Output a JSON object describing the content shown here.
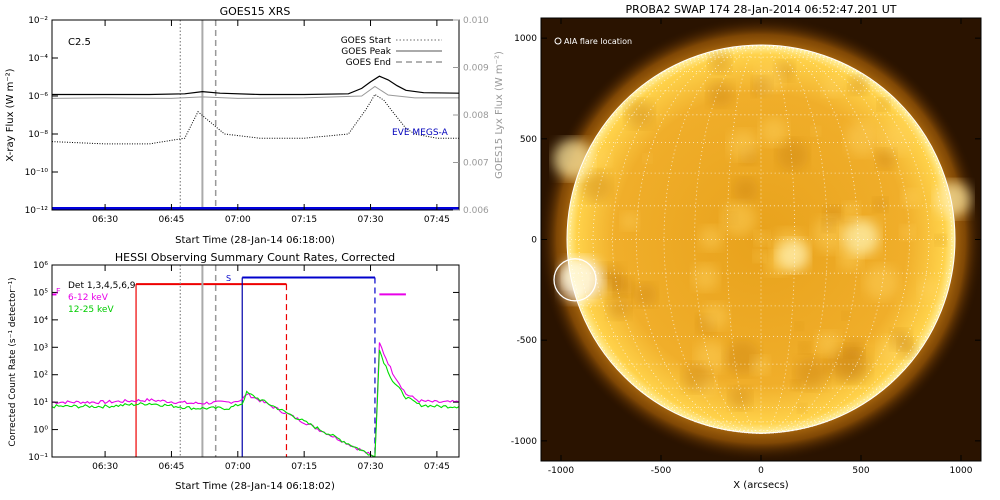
{
  "chart_data": [
    {
      "type": "line",
      "title": "GOES15 XRS",
      "xlabel": "Start Time (28-Jan-14 06:18:00)",
      "ylabel": "X-ray Flux (W m⁻²)",
      "ylabel_right": "GOES15 Lyx Flux (W m⁻²)",
      "x_ticks": [
        "06:30",
        "06:45",
        "07:00",
        "07:15",
        "07:30",
        "07:45"
      ],
      "y_ticks": [
        "10⁻¹²",
        "10⁻¹⁰",
        "10⁻⁸",
        "10⁻⁶",
        "10⁻⁴",
        "10⁻²"
      ],
      "y_right_ticks": [
        "0.006",
        "0.007",
        "0.008",
        "0.009",
        "0.010"
      ],
      "ylim": [
        1e-12,
        0.01
      ],
      "ylim_right": [
        0.006,
        0.01
      ],
      "log_y": true,
      "flare_class": "C2.5",
      "annotation": "EVE MEGS-A",
      "legend": [
        "GOES Start",
        "GOES Peak",
        "GOES End"
      ],
      "legend_position": "top-right",
      "markers": {
        "GOES Start": "06:47",
        "GOES Peak": "06:52",
        "GOES End": "06:55"
      },
      "series": [
        {
          "name": "long",
          "times": [
            "06:18",
            "06:30",
            "06:40",
            "06:48",
            "06:52",
            "06:56",
            "07:05",
            "07:15",
            "07:25",
            "07:28",
            "07:30",
            "07:32",
            "07:34",
            "07:36",
            "07:38",
            "07:42",
            "07:50"
          ],
          "values": [
            1.2e-06,
            1.2e-06,
            1.2e-06,
            1.3e-06,
            1.7e-06,
            1.4e-06,
            1.2e-06,
            1.2e-06,
            1.3e-06,
            2.5e-06,
            5.5e-06,
            1.1e-05,
            7e-06,
            3.5e-06,
            2e-06,
            1.5e-06,
            1.4e-06
          ]
        },
        {
          "name": "short",
          "times": [
            "06:18",
            "06:30",
            "06:40",
            "06:48",
            "06:51",
            "06:53",
            "06:57",
            "07:05",
            "07:15",
            "07:25",
            "07:29",
            "07:31",
            "07:33",
            "07:35",
            "07:38",
            "07:40",
            "07:45",
            "07:50"
          ],
          "values": [
            4e-09,
            3e-09,
            3e-09,
            6e-09,
            1.5e-07,
            6e-08,
            1e-08,
            6e-09,
            6e-09,
            1e-08,
            2e-07,
            1.2e-06,
            6e-07,
            1.5e-07,
            2e-08,
            1e-08,
            6e-09,
            6e-09
          ]
        },
        {
          "name": "lyman-alpha",
          "times": [
            "06:18",
            "06:30",
            "06:45",
            "06:52",
            "07:00",
            "07:15",
            "07:28",
            "07:31",
            "07:34",
            "07:40",
            "07:50"
          ],
          "values": [
            0.00835,
            0.00836,
            0.00835,
            0.00838,
            0.00835,
            0.00836,
            0.0084,
            0.0086,
            0.00842,
            0.00836,
            0.00836
          ]
        },
        {
          "name": "EVE MEGS-A",
          "times": [
            "06:18",
            "07:50"
          ],
          "values": [
            1.2e-12,
            1.2e-12
          ]
        }
      ]
    },
    {
      "type": "line",
      "title": "HESSI Observing Summary Count Rates, Corrected",
      "xlabel": "Start Time (28-Jan-14 06:18:02)",
      "ylabel": "Corrected Count Rate (s⁻¹ detector⁻¹)",
      "x_ticks": [
        "06:30",
        "06:45",
        "07:00",
        "07:15",
        "07:30",
        "07:45"
      ],
      "y_ticks": [
        "10⁻¹",
        "10⁰",
        "10¹",
        "10²",
        "10³",
        "10⁴",
        "10⁵",
        "10⁶"
      ],
      "ylim": [
        0.1,
        1000000.0
      ],
      "log_y": true,
      "legend": [
        "Det 1,3,4,5,6,9",
        "6-12 keV",
        "12-25 keV"
      ],
      "legend_position": "top-left",
      "bar_labels": [
        "F",
        "S"
      ],
      "series": [
        {
          "name": "6-12 keV",
          "color": "#e800e8",
          "times": [
            "06:18",
            "06:30",
            "06:40",
            "06:50",
            "06:58",
            "07:01",
            "07:02",
            "07:31",
            "07:32",
            "07:33",
            "07:35",
            "07:38",
            "07:41",
            "07:45",
            "07:50"
          ],
          "values": [
            10,
            10,
            12,
            9,
            10,
            12,
            20,
            0.1,
            1500,
            600,
            120,
            20,
            11,
            10,
            10
          ]
        },
        {
          "name": "12-25 keV",
          "color": "#00dd00",
          "times": [
            "06:18",
            "06:30",
            "06:40",
            "06:50",
            "06:58",
            "07:01",
            "07:02",
            "07:31",
            "07:32",
            "07:33",
            "07:35",
            "07:38",
            "07:41",
            "07:45",
            "07:50"
          ],
          "values": [
            7,
            7,
            9,
            6,
            6,
            9,
            22,
            0.1,
            800,
            300,
            60,
            15,
            8,
            7,
            7
          ]
        }
      ]
    },
    {
      "type": "image",
      "title": "PROBA2 SWAP 174 28-Jan-2014 06:52:47.201 UT",
      "xlabel": "X (arcsecs)",
      "annotation": "AIA flare location",
      "x_ticks": [
        "-1000",
        "-500",
        "0",
        "500",
        "1000"
      ],
      "y_ticks": [
        "-1000",
        "-500",
        "0",
        "500",
        "1000"
      ],
      "xlim": [
        -1100,
        1100
      ],
      "ylim": [
        -1100,
        1100
      ],
      "solar_radius": 970,
      "flare_location": [
        -930,
        -200
      ]
    }
  ]
}
